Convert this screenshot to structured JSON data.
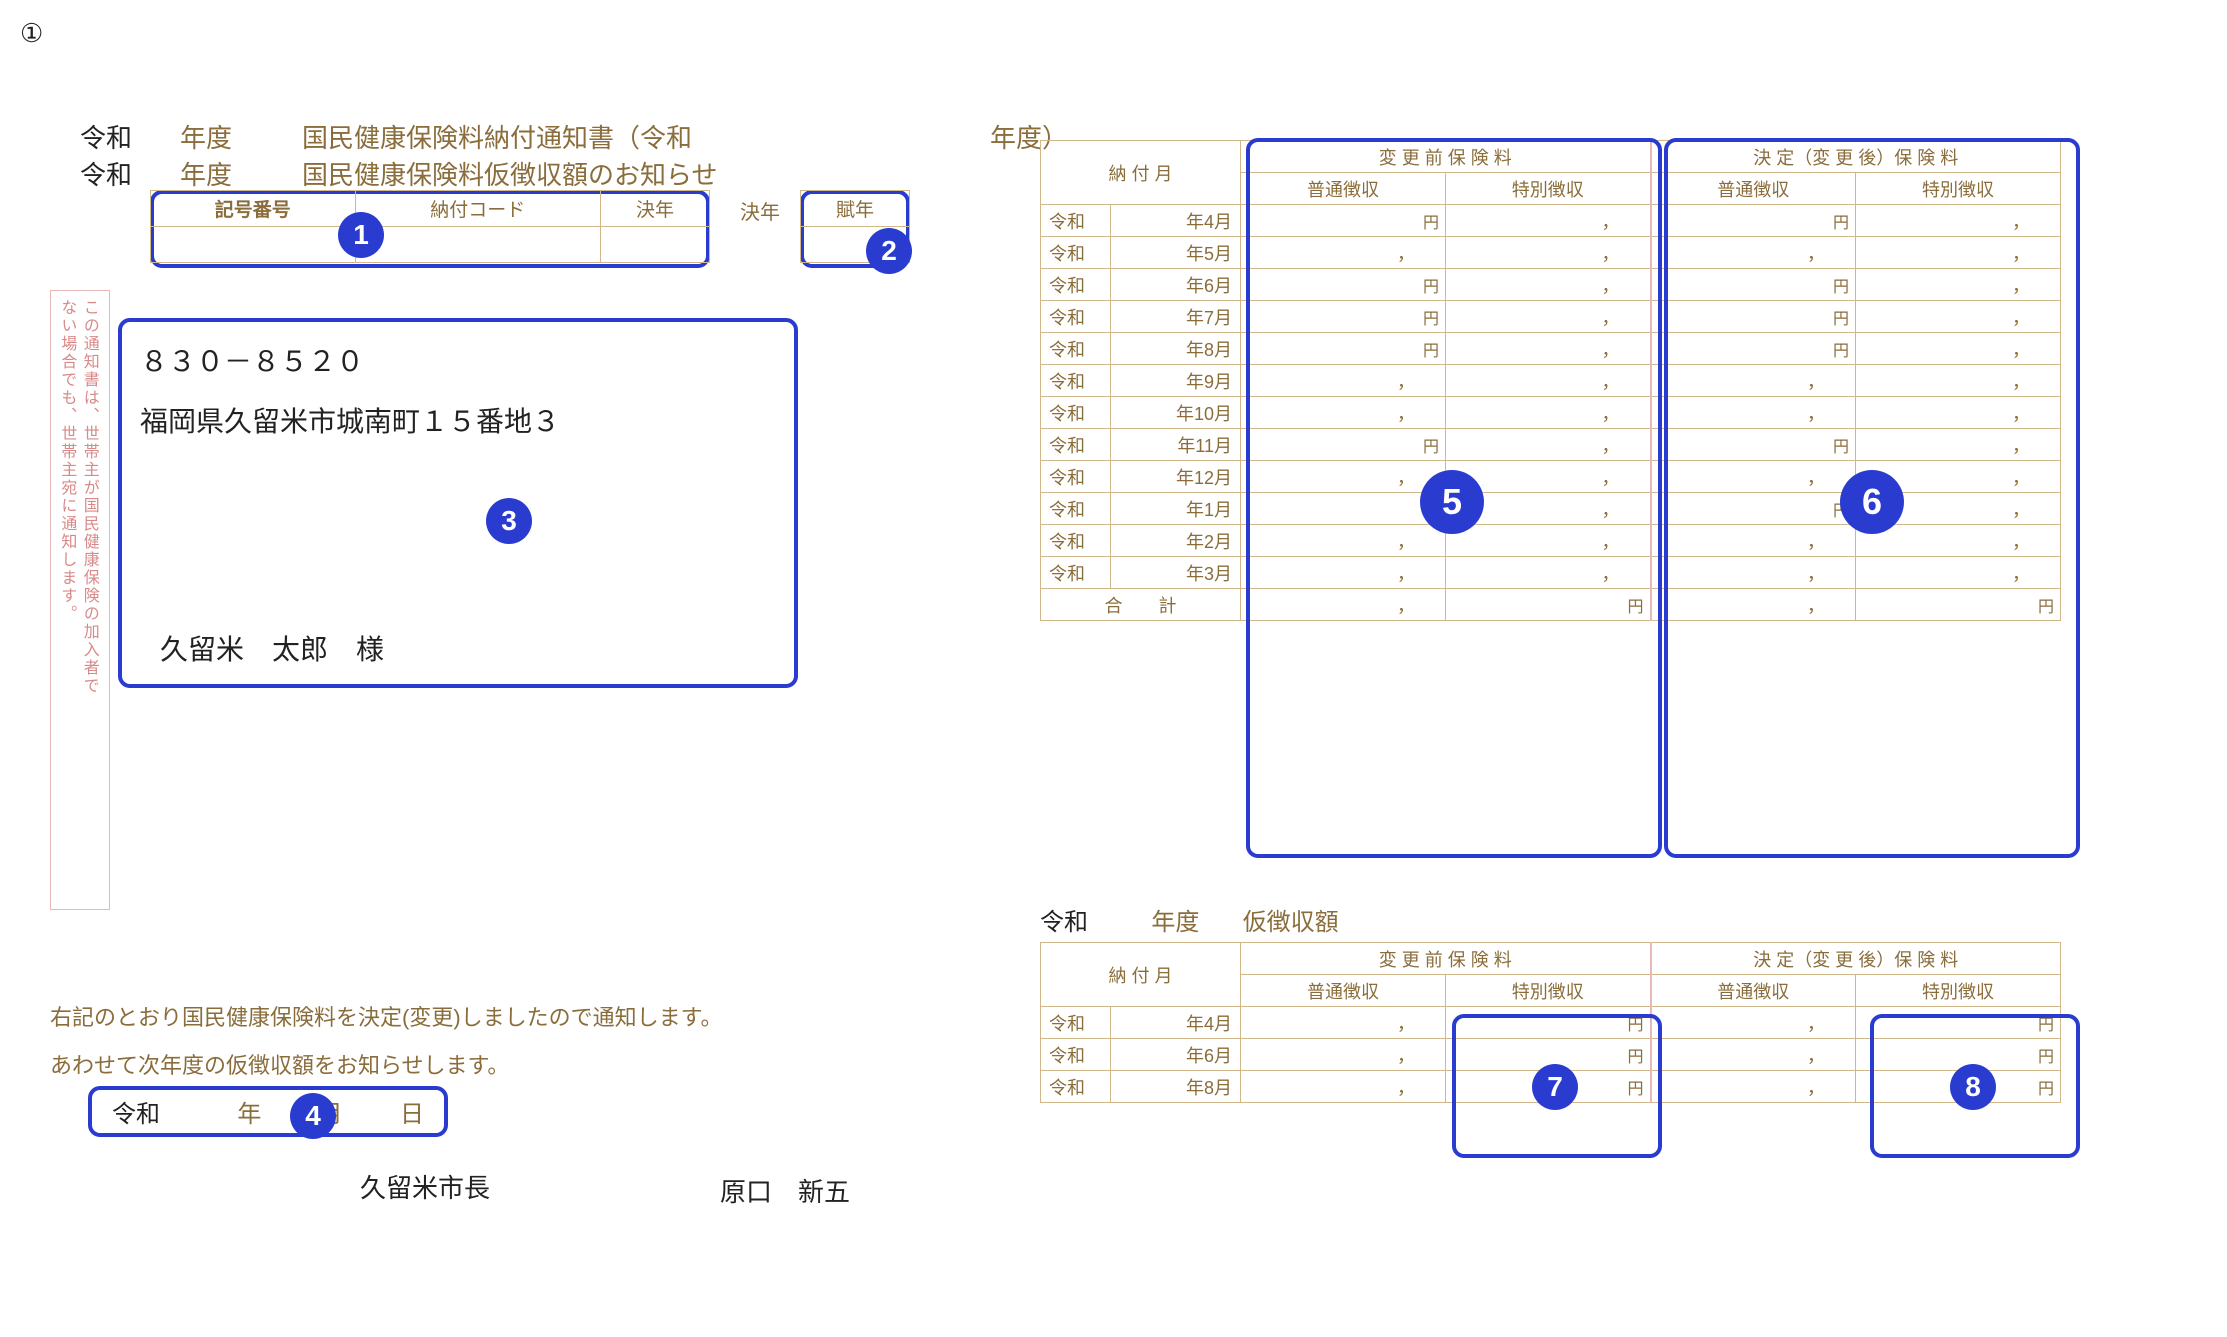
{
  "circleMark": "①",
  "titles": {
    "line1_a": "令和",
    "line1_b": "年度",
    "line1_c": "国民健康保険料納付通知書（令和",
    "line1_d": "年度）",
    "line2_a": "令和",
    "line2_b": "年度",
    "line2_c": "国民健康保険料仮徴収額のお知らせ"
  },
  "codeBox": {
    "symbol_label": "記号番号",
    "pay_code_label": "納付コード",
    "ketsu_label": "決年",
    "fu_label": "賦年"
  },
  "address": {
    "postal": "８３０－８５２０",
    "addr": "福岡県久留米市城南町１５番地３",
    "name": "久留米　太郎　様"
  },
  "vnote": {
    "right": "この通知書は、世帯主が国民健康保険の加入者で",
    "left": "ない場合でも、世帯主宛に通知します。"
  },
  "noticeLines": {
    "l1": "右記のとおり国民健康保険料を決定(変更)しましたので通知します。",
    "l2": "あわせて次年度の仮徴収額をお知らせします。"
  },
  "dateBox": {
    "era": "令和",
    "y": "年",
    "m": "月",
    "d": "日"
  },
  "issuer": "久留米市長",
  "signer": "原口　新五",
  "table1": {
    "h_month": "納 付 月",
    "h_before": "変 更 前 保 険 料",
    "h_after": "決 定（変 更 後）保 険 料",
    "h_normal": "普通徴収",
    "h_special": "特別徴収",
    "months": [
      "年4月",
      "年5月",
      "年6月",
      "年7月",
      "年8月",
      "年9月",
      "年10月",
      "年11月",
      "年12月",
      "年1月",
      "年2月",
      "年3月"
    ],
    "era": "令和",
    "yen": "円",
    "total": "合　　計"
  },
  "table2": {
    "title_era": "令和",
    "title_yd": "年度",
    "title_txt": "仮徴収額",
    "months": [
      "年4月",
      "年6月",
      "年8月"
    ]
  },
  "badges": {
    "b1": "1",
    "b2": "2",
    "b3": "3",
    "b4": "4",
    "b5": "5",
    "b6": "6",
    "b7": "7",
    "b8": "8"
  },
  "colors": {
    "brown": "#8a6d3b",
    "pink": "#d88a8a",
    "blue": "#2a3cd0"
  }
}
